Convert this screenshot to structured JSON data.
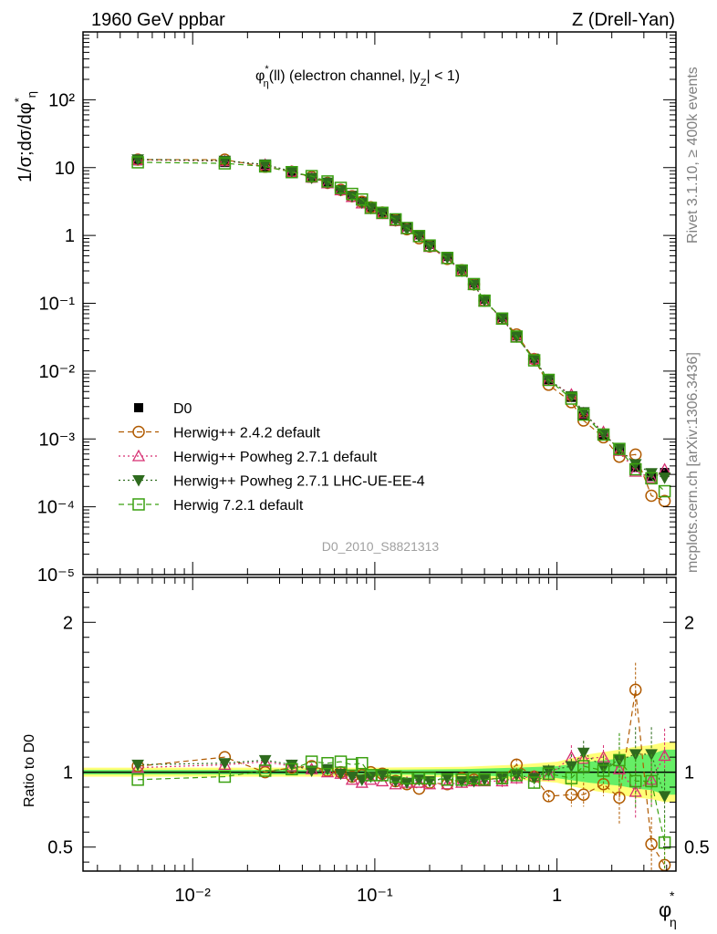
{
  "header": {
    "left": "1960 GeV ppbar",
    "right": "Z (Drell-Yan)"
  },
  "side_labels": {
    "rivet": "Rivet 3.1.10, ≥ 400k events",
    "mcplots": "mcplots.cern.ch [arXiv:1306.3436]"
  },
  "watermark": "D0_2010_S8821313",
  "colors": {
    "data": "#000000",
    "h242": "#b05a00",
    "h271": "#d62f72",
    "h271ue": "#2e6b1e",
    "h721": "#3aa010",
    "band_yellow": "#ffff77",
    "band_green": "#66ee66"
  },
  "chart_data": [
    {
      "type": "line",
      "panel": "main",
      "title": "φ*η(ll) (electron channel, |yZ| < 1)",
      "title_parts": {
        "phi": "φ",
        "star": "*",
        "eta": "η",
        "ll": "(ll) (electron channel, |y",
        "z": "Z",
        "rest": "| < 1)"
      },
      "xlabel": "φ*η",
      "ylabel": "1/σ;dσ/dφ*η",
      "xscale": "log",
      "yscale": "log",
      "xlim": [
        0.0025,
        4.5
      ],
      "ylim": [
        1e-05,
        1000
      ],
      "x_ticks": [
        0.01,
        0.1,
        1
      ],
      "x_tick_labels": [
        "10⁻²",
        "10⁻¹",
        "1"
      ],
      "y_ticks": [
        1e-05,
        0.0001,
        0.001,
        0.01,
        0.1,
        1,
        10,
        100
      ],
      "y_tick_labels": [
        "10⁻⁵",
        "10⁻⁴",
        "10⁻³",
        "10⁻²",
        "10⁻¹",
        "1",
        "10",
        "10²"
      ],
      "legend_position": "bottom-left",
      "x": [
        0.005,
        0.015,
        0.025,
        0.035,
        0.045,
        0.055,
        0.065,
        0.075,
        0.085,
        0.095,
        0.11,
        0.13,
        0.15,
        0.175,
        0.2,
        0.25,
        0.3,
        0.35,
        0.4,
        0.5,
        0.6,
        0.75,
        0.9,
        1.2,
        1.4,
        1.8,
        2.2,
        2.7,
        3.3,
        3.9
      ],
      "series": [
        {
          "name": "D0",
          "key": "data",
          "marker": "square",
          "values": [
            12.6,
            11.9,
            10.3,
            8.4,
            7.0,
            5.9,
            4.7,
            3.9,
            3.2,
            2.6,
            2.2,
            1.78,
            1.34,
            1.02,
            0.74,
            0.49,
            0.32,
            0.2,
            0.115,
            0.062,
            0.033,
            0.0155,
            0.0075,
            0.0041,
            0.0022,
            0.00115,
            0.00066,
            0.00038,
            0.00028,
            0.00032
          ]
        },
        {
          "name": "Herwig++ 2.4.2 default",
          "key": "h242",
          "marker": "circle",
          "ratio": [
            1.04,
            1.1,
            1.0,
            1.03,
            1.04,
            1.01,
            1.0,
            0.97,
            0.98,
            1.0,
            0.99,
            0.94,
            0.92,
            0.89,
            0.93,
            0.92,
            0.96,
            0.95,
            0.95,
            0.96,
            1.05,
            0.97,
            0.84,
            0.85,
            0.85,
            0.92,
            0.83,
            1.55,
            0.52,
            0.38
          ]
        },
        {
          "name": "Herwig++ Powheg 2.7.1 default",
          "key": "h271",
          "marker": "triangle-up",
          "ratio": [
            1.03,
            1.05,
            1.07,
            1.04,
            1.02,
            1.0,
            0.99,
            0.95,
            0.93,
            0.95,
            0.94,
            0.92,
            0.93,
            0.93,
            0.92,
            0.92,
            0.93,
            0.94,
            0.94,
            0.94,
            0.96,
            0.97,
            0.98,
            1.1,
            1.09,
            1.1,
            1.02,
            0.87,
            0.95,
            1.11
          ]
        },
        {
          "name": "Herwig++ Powheg 2.7.1 LHC-UE-EE-4",
          "key": "h271ue",
          "marker": "triangle-down",
          "ratio": [
            1.05,
            1.06,
            1.08,
            1.05,
            1.01,
            1.02,
            0.99,
            0.97,
            0.95,
            0.97,
            0.98,
            0.94,
            0.93,
            0.95,
            0.94,
            0.96,
            0.94,
            0.94,
            0.95,
            0.96,
            0.98,
            0.96,
            1.01,
            1.04,
            1.13,
            1.03,
            1.08,
            1.12,
            1.12,
            0.84
          ]
        },
        {
          "name": "Herwig 7.2.1 default",
          "key": "h721",
          "marker": "open-square",
          "ratio": [
            0.95,
            0.97,
            1.01,
            1.02,
            1.07,
            1.06,
            1.07,
            1.05,
            1.06,
            0.98,
            0.98,
            0.97,
            0.96,
            0.96,
            0.96,
            0.95,
            0.95,
            0.96,
            0.95,
            0.96,
            0.98,
            0.93,
            0.99,
            0.96,
            1.04,
            1.01,
            1.08,
            0.94,
            0.94,
            0.53
          ]
        }
      ]
    },
    {
      "type": "line",
      "panel": "ratio",
      "xlabel": "φ*η",
      "ylabel": "Ratio to D0",
      "xscale": "log",
      "yscale": "linear",
      "ylim": [
        0.34,
        2.3
      ],
      "y_ticks": [
        0.5,
        1,
        2
      ],
      "y_tick_labels": [
        "0.5",
        "1",
        "2"
      ],
      "band_x": [
        0.005,
        0.1,
        0.3,
        0.6,
        1.0,
        1.5,
        2.2,
        2.7,
        3.3,
        3.9,
        4.5
      ],
      "band_yellow_half": [
        0.03,
        0.03,
        0.035,
        0.05,
        0.07,
        0.12,
        0.15,
        0.17,
        0.18,
        0.2,
        0.2
      ],
      "band_green_half": [
        0.015,
        0.015,
        0.02,
        0.03,
        0.04,
        0.07,
        0.09,
        0.11,
        0.12,
        0.15,
        0.15
      ]
    }
  ]
}
